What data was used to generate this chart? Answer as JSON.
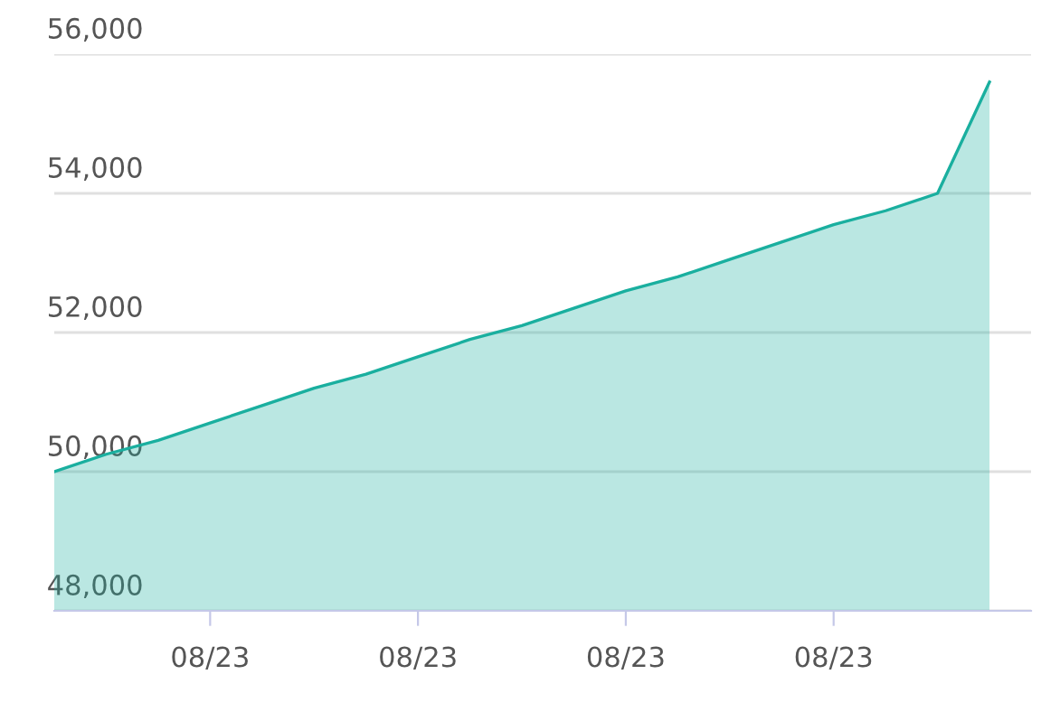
{
  "chart_data": {
    "type": "area",
    "categories": [
      null,
      null,
      null,
      "08/23",
      null,
      null,
      null,
      "08/23",
      null,
      null,
      null,
      "08/23",
      null,
      null,
      null,
      "08/23",
      null,
      null,
      null
    ],
    "series": [
      {
        "color": "#1aaf9f",
        "values": [
          50000,
          50250,
          50450,
          50700,
          50950,
          51200,
          51400,
          51650,
          51900,
          52100,
          52350,
          52600,
          52800,
          53050,
          53300,
          53550,
          53750,
          54000,
          55600
        ]
      }
    ],
    "ylim": [
      48000,
      56000
    ],
    "yticks": [
      {
        "value": 48000,
        "label": "48,000"
      },
      {
        "value": 50000,
        "label": "50,000"
      },
      {
        "value": 52000,
        "label": "52,000"
      },
      {
        "value": 54000,
        "label": "54,000"
      },
      {
        "value": 56000,
        "label": "56,000"
      }
    ],
    "grid": "y"
  }
}
